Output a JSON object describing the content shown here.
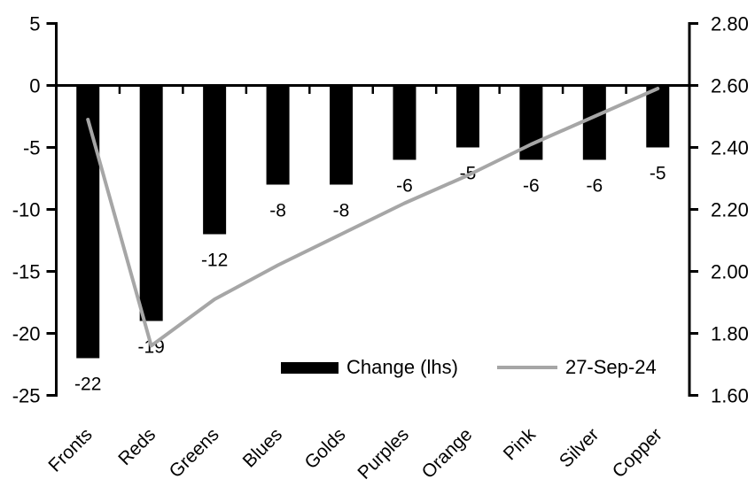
{
  "chart_data": {
    "type": "combo",
    "title": "",
    "categories": [
      "Fronts",
      "Reds",
      "Greens",
      "Blues",
      "Golds",
      "Purples",
      "Orange",
      "Pink",
      "Silver",
      "Copper"
    ],
    "series": [
      {
        "name": "Change (lhs)",
        "type": "bar",
        "axis": "left",
        "color": "#000000",
        "values": [
          -22,
          -19,
          -12,
          -8,
          -8,
          -6,
          -5,
          -6,
          -6,
          -5
        ],
        "data_labels": [
          "-22",
          "-19",
          "-12",
          "-8",
          "-8",
          "-6",
          "-5",
          "-6",
          "-6",
          "-5"
        ]
      },
      {
        "name": "27-Sep-24",
        "type": "line",
        "axis": "right",
        "color": "#a6a6a6",
        "values": [
          2.49,
          1.76,
          1.91,
          2.02,
          2.12,
          2.22,
          2.31,
          2.41,
          2.5,
          2.59
        ]
      }
    ],
    "left_axis": {
      "ticks": [
        "5",
        "0",
        "-5",
        "-10",
        "-15",
        "-20",
        "-25"
      ],
      "range": [
        -25,
        5
      ]
    },
    "right_axis": {
      "ticks": [
        "2.80",
        "2.60",
        "2.40",
        "2.20",
        "2.00",
        "1.80",
        "1.60"
      ],
      "range": [
        1.6,
        2.8
      ]
    },
    "legend": [
      {
        "label": "Change (lhs)",
        "swatch": "bar"
      },
      {
        "label": "27-Sep-24",
        "swatch": "line"
      }
    ],
    "grid": false,
    "legend_position": "inside-bottom-center",
    "colors": {
      "bar": "#000000",
      "line": "#a6a6a6",
      "axis": "#000000",
      "background": "#ffffff"
    }
  }
}
